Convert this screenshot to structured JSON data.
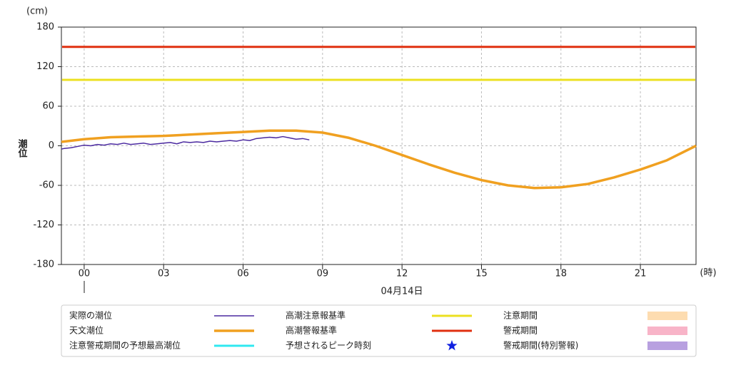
{
  "chart_data": {
    "type": "line",
    "y_unit": "(cm)",
    "x_unit": "(時)",
    "ylabel": "潮位",
    "date_label": "04月14日",
    "xlim": [
      -0.86,
      23.1
    ],
    "ylim": [
      -180,
      180
    ],
    "xticks": [
      {
        "value": 0,
        "label": "00"
      },
      {
        "value": 3,
        "label": "03"
      },
      {
        "value": 6,
        "label": "06"
      },
      {
        "value": 9,
        "label": "09"
      },
      12,
      15,
      18,
      21
    ],
    "yticks": [
      180,
      120,
      60,
      0,
      -60,
      -120,
      -180
    ],
    "grid": true,
    "series": [
      {
        "name": "実際の潮位",
        "color": "#4b2aa0",
        "width": 1.5,
        "x": [
          -0.86,
          -0.75,
          -0.5,
          -0.25,
          0,
          0.25,
          0.5,
          0.75,
          1,
          1.25,
          1.5,
          1.75,
          2,
          2.25,
          2.5,
          2.75,
          3,
          3.25,
          3.5,
          3.75,
          4,
          4.25,
          4.5,
          4.75,
          5,
          5.25,
          5.5,
          5.75,
          6,
          6.25,
          6.5,
          6.75,
          7,
          7.25,
          7.5,
          7.75,
          8,
          8.25,
          8.5
        ],
        "values": [
          -5,
          -4,
          -3,
          -1,
          1,
          0,
          2,
          1,
          3,
          2,
          4,
          2,
          3,
          4,
          2,
          3,
          4,
          5,
          3,
          6,
          5,
          6,
          5,
          7,
          6,
          7,
          8,
          7,
          9,
          8,
          11,
          12,
          13,
          12,
          14,
          12,
          10,
          11,
          9
        ]
      },
      {
        "name": "天文潮位",
        "color": "#f0a020",
        "width": 3.5,
        "x": [
          -0.86,
          0,
          1,
          2,
          3,
          4,
          5,
          6,
          7,
          8,
          9,
          10,
          11,
          12,
          13,
          14,
          15,
          16,
          17,
          18,
          19,
          20,
          21,
          22,
          23.1
        ],
        "values": [
          6,
          10,
          13,
          14,
          15,
          17,
          19,
          21,
          23,
          23,
          20,
          12,
          0,
          -14,
          -28,
          -41,
          -52,
          -60,
          -64,
          -63,
          -58,
          -48,
          -36,
          -22,
          0
        ]
      }
    ],
    "reference_lines": [
      {
        "name": "高潮注意報基準",
        "color": "#ece020",
        "value": 100
      },
      {
        "name": "高潮警報基準",
        "color": "#e03010",
        "value": 150
      }
    ],
    "legend_extra": [
      {
        "name": "注意警戒期間の予想最高潮位",
        "color": "#30e8f0",
        "symbol": "line"
      },
      {
        "name": "予想されるピーク時刻",
        "color": "#1020e0",
        "symbol": "star"
      },
      {
        "name": "注意期間",
        "color": "#fddcb0",
        "symbol": "box"
      },
      {
        "name": "警戒期間",
        "color": "#f8b4c8",
        "symbol": "box"
      },
      {
        "name": "警戒期間(特別警報)",
        "color": "#b8a0e0",
        "symbol": "box"
      }
    ]
  }
}
